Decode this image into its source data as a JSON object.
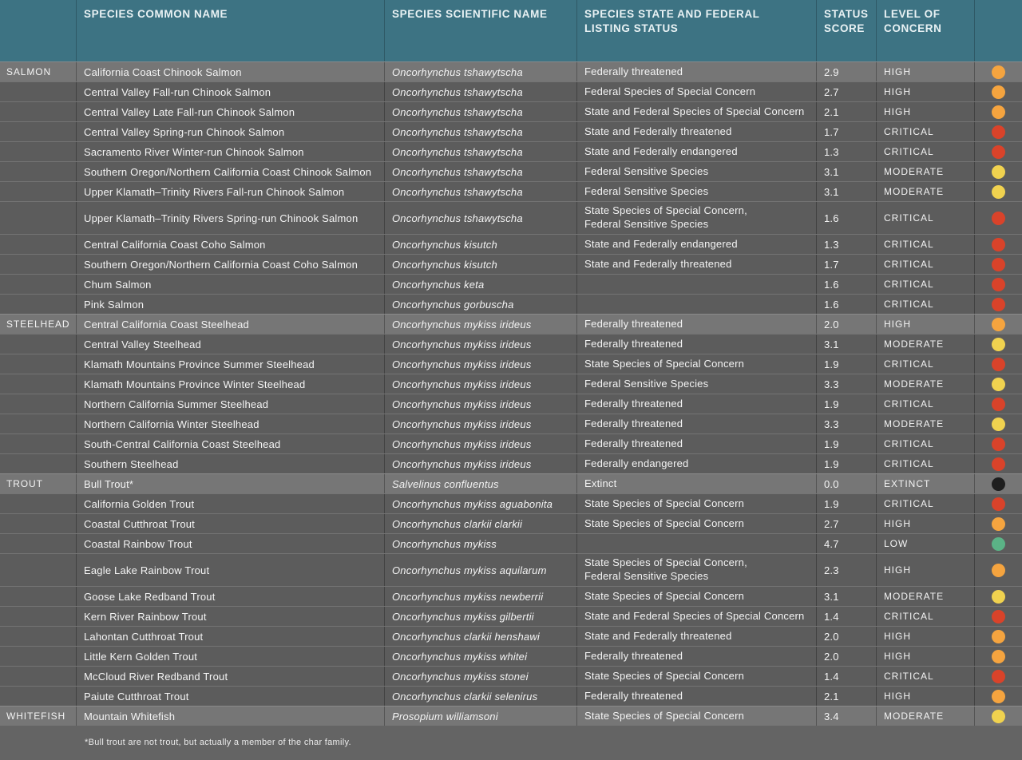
{
  "table": {
    "headers": {
      "group": "",
      "common": "SPECIES COMMON NAME",
      "scientific": "SPECIES SCIENTIFIC NAME",
      "listing": "SPECIES STATE AND FEDERAL\nLISTING STATUS",
      "score": "STATUS\nSCORE",
      "concern": "LEVEL OF\nCONCERN"
    },
    "rows": [
      {
        "group": "SALMON",
        "group_start": true,
        "tall": false,
        "common": "California Coast Chinook Salmon",
        "scientific": "Oncorhynchus tshawytscha",
        "listing": "Federally threatened",
        "score": "2.9",
        "concern": "HIGH"
      },
      {
        "group": "",
        "group_start": false,
        "tall": false,
        "common": "Central Valley Fall-run Chinook Salmon",
        "scientific": "Oncorhynchus tshawytscha",
        "listing": "Federal Species of Special Concern",
        "score": "2.7",
        "concern": "HIGH"
      },
      {
        "group": "",
        "group_start": false,
        "tall": false,
        "common": "Central Valley Late Fall-run Chinook Salmon",
        "scientific": "Oncorhynchus tshawytscha",
        "listing": "State and Federal Species of Special Concern",
        "score": "2.1",
        "concern": "HIGH"
      },
      {
        "group": "",
        "group_start": false,
        "tall": false,
        "common": "Central Valley Spring-run Chinook Salmon",
        "scientific": "Oncorhynchus tshawytscha",
        "listing": "State and Federally threatened",
        "score": "1.7",
        "concern": "CRITICAL"
      },
      {
        "group": "",
        "group_start": false,
        "tall": false,
        "common": "Sacramento River Winter-run Chinook Salmon",
        "scientific": "Oncorhynchus tshawytscha",
        "listing": "State and Federally endangered",
        "score": "1.3",
        "concern": "CRITICAL"
      },
      {
        "group": "",
        "group_start": false,
        "tall": false,
        "common": "Southern Oregon/Northern California Coast Chinook Salmon",
        "scientific": "Oncorhynchus tshawytscha",
        "listing": "Federal Sensitive Species",
        "score": "3.1",
        "concern": "MODERATE"
      },
      {
        "group": "",
        "group_start": false,
        "tall": false,
        "common": "Upper Klamath–Trinity Rivers Fall-run Chinook Salmon",
        "scientific": "Oncorhynchus tshawytscha",
        "listing": "Federal Sensitive Species",
        "score": "3.1",
        "concern": "MODERATE"
      },
      {
        "group": "",
        "group_start": false,
        "tall": true,
        "common": "Upper Klamath–Trinity Rivers Spring-run Chinook Salmon",
        "scientific": "Oncorhynchus tshawytscha",
        "listing": "State Species of Special Concern,\nFederal Sensitive Species",
        "score": "1.6",
        "concern": "CRITICAL"
      },
      {
        "group": "",
        "group_start": false,
        "tall": false,
        "common": "Central California Coast Coho Salmon",
        "scientific": "Oncorhynchus kisutch",
        "listing": "State and Federally endangered",
        "score": "1.3",
        "concern": "CRITICAL"
      },
      {
        "group": "",
        "group_start": false,
        "tall": false,
        "common": "Southern Oregon/Northern California Coast Coho Salmon",
        "scientific": "Oncorhynchus kisutch",
        "listing": "State and Federally threatened",
        "score": "1.7",
        "concern": "CRITICAL"
      },
      {
        "group": "",
        "group_start": false,
        "tall": false,
        "common": "Chum Salmon",
        "scientific": "Oncorhynchus keta",
        "listing": "",
        "score": "1.6",
        "concern": "CRITICAL"
      },
      {
        "group": "",
        "group_start": false,
        "tall": false,
        "common": "Pink Salmon",
        "scientific": "Oncorhynchus gorbuscha",
        "listing": "",
        "score": "1.6",
        "concern": "CRITICAL"
      },
      {
        "group": "STEELHEAD",
        "group_start": true,
        "tall": false,
        "common": "Central California Coast Steelhead",
        "scientific": "Oncorhynchus mykiss irideus",
        "listing": "Federally threatened",
        "score": "2.0",
        "concern": "HIGH"
      },
      {
        "group": "",
        "group_start": false,
        "tall": false,
        "common": "Central Valley Steelhead",
        "scientific": "Oncorhynchus mykiss irideus",
        "listing": "Federally threatened",
        "score": "3.1",
        "concern": "MODERATE"
      },
      {
        "group": "",
        "group_start": false,
        "tall": false,
        "common": "Klamath Mountains Province Summer Steelhead",
        "scientific": "Oncorhynchus mykiss irideus",
        "listing": "State Species of Special Concern",
        "score": "1.9",
        "concern": "CRITICAL"
      },
      {
        "group": "",
        "group_start": false,
        "tall": false,
        "common": "Klamath Mountains Province Winter Steelhead",
        "scientific": "Oncorhynchus mykiss irideus",
        "listing": "Federal Sensitive Species",
        "score": "3.3",
        "concern": "MODERATE"
      },
      {
        "group": "",
        "group_start": false,
        "tall": false,
        "common": "Northern California Summer Steelhead",
        "scientific": "Oncorhynchus mykiss irideus",
        "listing": "Federally threatened",
        "score": "1.9",
        "concern": "CRITICAL"
      },
      {
        "group": "",
        "group_start": false,
        "tall": false,
        "common": "Northern California Winter Steelhead",
        "scientific": "Oncorhynchus mykiss irideus",
        "listing": "Federally threatened",
        "score": "3.3",
        "concern": "MODERATE"
      },
      {
        "group": "",
        "group_start": false,
        "tall": false,
        "common": "South-Central California Coast Steelhead",
        "scientific": "Oncorhynchus mykiss irideus",
        "listing": "Federally threatened",
        "score": "1.9",
        "concern": "CRITICAL"
      },
      {
        "group": "",
        "group_start": false,
        "tall": false,
        "common": "Southern Steelhead",
        "scientific": "Oncorhynchus mykiss irideus",
        "listing": "Federally endangered",
        "score": "1.9",
        "concern": "CRITICAL"
      },
      {
        "group": "TROUT",
        "group_start": true,
        "tall": false,
        "common": "Bull Trout*",
        "scientific": "Salvelinus confluentus",
        "listing": "Extinct",
        "score": "0.0",
        "concern": "EXTINCT"
      },
      {
        "group": "",
        "group_start": false,
        "tall": false,
        "common": "California Golden Trout",
        "scientific": "Oncorhynchus mykiss aguabonita",
        "listing": "State Species of Special Concern",
        "score": "1.9",
        "concern": "CRITICAL"
      },
      {
        "group": "",
        "group_start": false,
        "tall": false,
        "common": "Coastal Cutthroat Trout",
        "scientific": "Oncorhynchus clarkii clarkii",
        "listing": "State Species of Special Concern",
        "score": "2.7",
        "concern": "HIGH"
      },
      {
        "group": "",
        "group_start": false,
        "tall": false,
        "common": "Coastal Rainbow Trout",
        "scientific": "Oncorhynchus mykiss",
        "listing": "",
        "score": "4.7",
        "concern": "LOW"
      },
      {
        "group": "",
        "group_start": false,
        "tall": true,
        "common": "Eagle Lake Rainbow Trout",
        "scientific": "Oncorhynchus mykiss aquilarum",
        "listing": "State Species of Special Concern,\nFederal Sensitive Species",
        "score": "2.3",
        "concern": "HIGH"
      },
      {
        "group": "",
        "group_start": false,
        "tall": false,
        "common": "Goose Lake Redband Trout",
        "scientific": "Oncorhynchus mykiss newberrii",
        "listing": "State Species of Special Concern",
        "score": "3.1",
        "concern": "MODERATE"
      },
      {
        "group": "",
        "group_start": false,
        "tall": false,
        "common": "Kern River Rainbow Trout",
        "scientific": "Oncorhynchus mykiss gilbertii",
        "listing": "State and Federal Species of Special Concern",
        "score": "1.4",
        "concern": "CRITICAL"
      },
      {
        "group": "",
        "group_start": false,
        "tall": false,
        "common": "Lahontan Cutthroat Trout",
        "scientific": "Oncorhynchus clarkii henshawi",
        "listing": "State and Federally threatened",
        "score": "2.0",
        "concern": "HIGH"
      },
      {
        "group": "",
        "group_start": false,
        "tall": false,
        "common": "Little Kern Golden Trout",
        "scientific": "Oncorhynchus mykiss whitei",
        "listing": "Federally threatened",
        "score": "2.0",
        "concern": "HIGH"
      },
      {
        "group": "",
        "group_start": false,
        "tall": false,
        "common": "McCloud River Redband Trout",
        "scientific": "Oncorhynchus mykiss stonei",
        "listing": "State Species of Special Concern",
        "score": "1.4",
        "concern": "CRITICAL"
      },
      {
        "group": "",
        "group_start": false,
        "tall": false,
        "common": "Paiute Cutthroat Trout",
        "scientific": "Oncorhynchus clarkii selenirus",
        "listing": "Federally threatened",
        "score": "2.1",
        "concern": "HIGH"
      },
      {
        "group": "WHITEFISH",
        "group_start": true,
        "tall": false,
        "common": "Mountain Whitefish",
        "scientific": "Prosopium williamsoni",
        "listing": "State Species of Special Concern",
        "score": "3.4",
        "concern": "MODERATE"
      }
    ]
  },
  "concern_colors": {
    "HIGH": "#F5A43F",
    "CRITICAL": "#D9432A",
    "MODERATE": "#F0D24F",
    "LOW": "#5BB386",
    "EXTINCT": "#1E1E1E"
  },
  "colors": {
    "header_bg": "#3D7383",
    "row_dark": "#5C5C5C",
    "row_group": "#767676",
    "footer_bg": "#646464"
  },
  "footnote": "*Bull trout are not trout, but actually a member of the char family."
}
